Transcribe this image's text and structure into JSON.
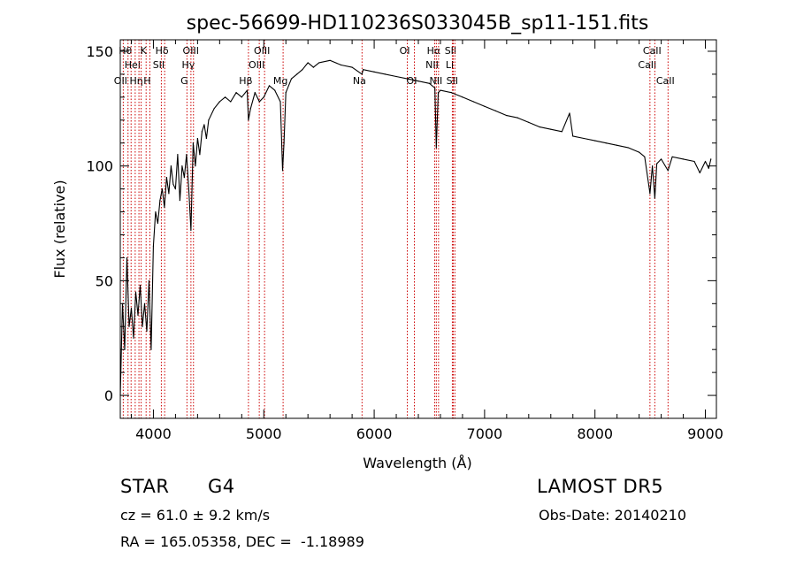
{
  "chart_data": {
    "type": "line",
    "title": "spec-56699-HD110236S033045B_sp11-151.fits",
    "xlabel": "Wavelength (Å)",
    "ylabel": "Flux (relative)",
    "xlim": [
      3700,
      9100
    ],
    "ylim": [
      -10,
      155
    ],
    "xticks": [
      4000,
      5000,
      6000,
      7000,
      8000,
      9000
    ],
    "yticks": [
      0,
      50,
      100,
      150
    ],
    "grid": false,
    "line_color": "#000000",
    "marker_line_color": "#cc0000",
    "series": [
      {
        "x": [
          3700,
          3720,
          3740,
          3760,
          3780,
          3800,
          3820,
          3840,
          3860,
          3880,
          3900,
          3920,
          3940,
          3960,
          3980,
          4000,
          4020,
          4040,
          4060,
          4080,
          4100,
          4120,
          4140,
          4160,
          4180,
          4200,
          4220,
          4240,
          4260,
          4280,
          4300,
          4320,
          4340,
          4360,
          4380,
          4400,
          4420,
          4440,
          4460,
          4480,
          4500,
          4550,
          4600,
          4650,
          4700,
          4750,
          4800,
          4850,
          4861,
          4880,
          4920,
          4960,
          5000,
          5050,
          5100,
          5150,
          5170,
          5183,
          5200,
          5250,
          5300,
          5350,
          5400,
          5450,
          5500,
          5600,
          5700,
          5800,
          5890,
          5900,
          6000,
          6100,
          6200,
          6300,
          6400,
          6500,
          6550,
          6563,
          6580,
          6600,
          6700,
          6800,
          6900,
          7000,
          7100,
          7200,
          7300,
          7400,
          7500,
          7600,
          7700,
          7770,
          7800,
          7900,
          8000,
          8100,
          8200,
          8300,
          8400,
          8450,
          8498,
          8520,
          8542,
          8560,
          8600,
          8662,
          8700,
          8800,
          8900,
          8950,
          9000,
          9030,
          9050
        ],
        "y": [
          0,
          40,
          20,
          60,
          30,
          38,
          25,
          45,
          35,
          48,
          30,
          40,
          28,
          50,
          20,
          65,
          80,
          75,
          85,
          90,
          82,
          95,
          88,
          100,
          92,
          90,
          105,
          85,
          100,
          95,
          105,
          90,
          72,
          110,
          100,
          112,
          105,
          115,
          118,
          112,
          120,
          125,
          128,
          130,
          128,
          132,
          130,
          133,
          120,
          125,
          132,
          128,
          130,
          135,
          133,
          128,
          98,
          110,
          132,
          138,
          140,
          142,
          145,
          143,
          145,
          146,
          144,
          143,
          140,
          142,
          141,
          140,
          139,
          138,
          137,
          136,
          134,
          108,
          132,
          133,
          132,
          130,
          128,
          126,
          124,
          122,
          121,
          119,
          117,
          116,
          115,
          123,
          113,
          112,
          111,
          110,
          109,
          108,
          106,
          104,
          88,
          100,
          86,
          101,
          103,
          98,
          104,
          103,
          102,
          97,
          102,
          99,
          103
        ]
      }
    ],
    "line_markers": [
      {
        "x": 3727,
        "label": "OII",
        "tier": 2
      },
      {
        "x": 3770,
        "label": "Hθ",
        "tier": 0
      },
      {
        "x": 3798,
        "label": "",
        "tier": 0
      },
      {
        "x": 3835,
        "label": "HeI",
        "tier": 1
      },
      {
        "x": 3869,
        "label": "Hη",
        "tier": 2
      },
      {
        "x": 3889,
        "label": "",
        "tier": 1
      },
      {
        "x": 3934,
        "label": "K",
        "tier": 0
      },
      {
        "x": 3968,
        "label": "H",
        "tier": 2
      },
      {
        "x": 4072,
        "label": "SII",
        "tier": 1
      },
      {
        "x": 4102,
        "label": "Hδ",
        "tier": 0
      },
      {
        "x": 4304,
        "label": "G",
        "tier": 2
      },
      {
        "x": 4340,
        "label": "Hγ",
        "tier": 1
      },
      {
        "x": 4363,
        "label": "OIII",
        "tier": 0
      },
      {
        "x": 4861,
        "label": "Hβ",
        "tier": 2
      },
      {
        "x": 4959,
        "label": "OIII",
        "tier": 1
      },
      {
        "x": 5007,
        "label": "OIII",
        "tier": 0
      },
      {
        "x": 5175,
        "label": "Mg",
        "tier": 2
      },
      {
        "x": 5890,
        "label": "Na",
        "tier": 2
      },
      {
        "x": 6300,
        "label": "OI",
        "tier": 0
      },
      {
        "x": 6364,
        "label": "OI",
        "tier": 2
      },
      {
        "x": 6548,
        "label": "NII",
        "tier": 1
      },
      {
        "x": 6563,
        "label": "Hα",
        "tier": 0
      },
      {
        "x": 6583,
        "label": "NII",
        "tier": 2
      },
      {
        "x": 6708,
        "label": "Li",
        "tier": 1
      },
      {
        "x": 6716,
        "label": "SII",
        "tier": 0
      },
      {
        "x": 6731,
        "label": "SII",
        "tier": 2
      },
      {
        "x": 8498,
        "label": "CaII",
        "tier": 1
      },
      {
        "x": 8542,
        "label": "CaII",
        "tier": 0
      },
      {
        "x": 8662,
        "label": "CaII",
        "tier": 2
      }
    ]
  },
  "footer": {
    "object_class": "STAR",
    "subclass": "G4",
    "survey": "LAMOST DR5",
    "redshift": "cz = 61.0 ± 9.2 km/s",
    "obs_date": "Obs-Date: 20140210",
    "coords": "RA = 165.05358, DEC =  -1.18989"
  }
}
